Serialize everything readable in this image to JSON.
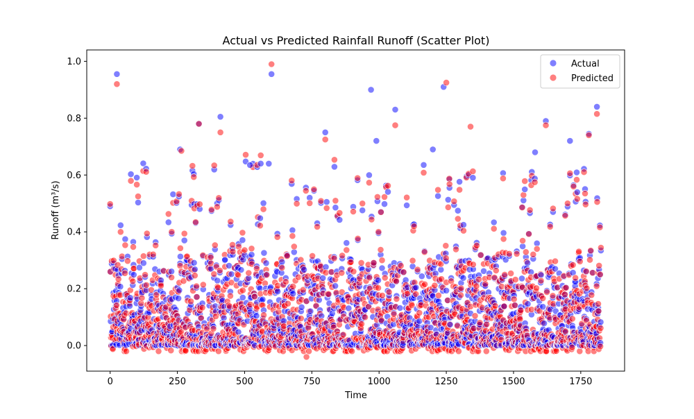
{
  "chart_data": {
    "type": "scatter",
    "title": "Actual vs Predicted Rainfall Runoff (Scatter Plot)",
    "xlabel": "Time",
    "ylabel": "Runoff (m³/s)",
    "xlim": [
      -87,
      1913
    ],
    "ylim": [
      -0.09,
      1.04
    ],
    "xticks": [
      0,
      250,
      500,
      750,
      1000,
      1250,
      1500,
      1750
    ],
    "xtick_labels": [
      "0",
      "250",
      "500",
      "750",
      "1000",
      "1250",
      "1500",
      "1750"
    ],
    "yticks": [
      0.0,
      0.2,
      0.4,
      0.6,
      0.8,
      1.0
    ],
    "ytick_labels": [
      "0.0",
      "0.2",
      "0.4",
      "0.6",
      "0.8",
      "1.0"
    ],
    "grid": false,
    "legend_position": "top-right",
    "n_points": 1826,
    "series": [
      {
        "name": "Actual",
        "color": "#0000ff",
        "alpha": 0.5,
        "x": [
          25,
          600,
          970,
          1240,
          1060,
          1810,
          410,
          800,
          1620,
          1780,
          1710,
          330,
          260,
          520,
          590,
          1580,
          990,
          1200
        ],
        "y": [
          0.955,
          0.955,
          0.9,
          0.91,
          0.83,
          0.84,
          0.805,
          0.75,
          0.79,
          0.745,
          0.72,
          0.78,
          0.69,
          0.635,
          0.64,
          0.68,
          0.72,
          0.69
        ]
      },
      {
        "name": "Predicted",
        "color": "#ff0000",
        "alpha": 0.5,
        "x": [
          25,
          600,
          1250,
          1060,
          1810,
          410,
          800,
          1620,
          1780,
          330,
          265,
          730,
          1340
        ],
        "y": [
          0.92,
          0.99,
          0.925,
          0.775,
          0.815,
          0.75,
          0.725,
          0.775,
          0.74,
          0.78,
          0.685,
          -0.04,
          0.77
        ]
      }
    ]
  },
  "legend": {
    "items": [
      {
        "label": "Actual",
        "color": "#0000ff"
      },
      {
        "label": "Predicted",
        "color": "#ff0000"
      }
    ]
  }
}
